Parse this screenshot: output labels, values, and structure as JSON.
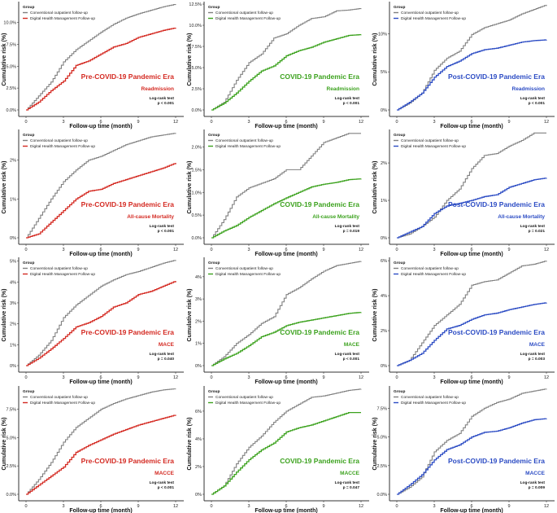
{
  "legend_title": "Group",
  "legend_labels": [
    "Conventional outpatient follow-up",
    "Digital Health Management Follow-up"
  ],
  "xlabel": "Follow-up time (month)",
  "ylabel": "Cumulative risk (%)",
  "logrank_label": "Log-rank test",
  "colors": {
    "conventional": "#808080",
    "pre": "#d42a22",
    "covid": "#3ca21e",
    "post": "#2c4cc4"
  },
  "chart_data": [
    {
      "type": "line",
      "era": "Pre-COVID-19 Pandemic Era",
      "endpoint": "Readmission",
      "era_color": "pre",
      "p": "p < 0.001",
      "xticks": [
        0,
        3,
        6,
        9,
        12
      ],
      "xlim": [
        0,
        12
      ],
      "ylim": [
        0,
        12.2
      ],
      "yticks": [
        0,
        2.5,
        5,
        7.5,
        10
      ],
      "ytick_labels": [
        "0.0%",
        "2.5%",
        "5.0%",
        "7.5%",
        "10.0%"
      ],
      "x": [
        0,
        1,
        2,
        3,
        4,
        5,
        6,
        7,
        8,
        9,
        10,
        11,
        12
      ],
      "series": [
        {
          "name": "Conventional outpatient follow-up",
          "values": [
            0,
            1.6,
            3.2,
            5.5,
            6.9,
            7.9,
            8.9,
            9.8,
            10.5,
            11.0,
            11.4,
            11.8,
            12.1
          ]
        },
        {
          "name": "Digital Health Management Follow-up",
          "values": [
            0,
            0.9,
            2.2,
            3.3,
            5.1,
            5.6,
            6.4,
            7.2,
            7.6,
            8.3,
            8.7,
            9.1,
            9.4
          ]
        }
      ]
    },
    {
      "type": "line",
      "era": "COVID-19 Pandemic Era",
      "endpoint": "Readmission",
      "era_color": "covid",
      "p": "p < 0.001",
      "xticks": [
        0,
        3,
        6,
        9,
        12
      ],
      "xlim": [
        0,
        12
      ],
      "ylim": [
        0,
        12.6
      ],
      "yticks": [
        0,
        2.5,
        5,
        7.5,
        10,
        12.5
      ],
      "ytick_labels": [
        "0.0%",
        "2.5%",
        "5.0%",
        "7.5%",
        "10.0%",
        "12.5%"
      ],
      "x": [
        0,
        1,
        2,
        3,
        4,
        5,
        6,
        7,
        8,
        9,
        10,
        11,
        12
      ],
      "series": [
        {
          "name": "Conventional outpatient follow-up",
          "values": [
            0,
            0.9,
            3.5,
            5.6,
            6.6,
            8.5,
            9.0,
            10.0,
            10.8,
            11.0,
            11.7,
            11.8,
            12.0
          ]
        },
        {
          "name": "Digital Health Management Follow-up",
          "values": [
            0,
            0.8,
            2.0,
            3.4,
            4.6,
            5.2,
            6.4,
            7.0,
            7.4,
            8.0,
            8.4,
            8.8,
            8.9
          ]
        }
      ]
    },
    {
      "type": "line",
      "era": "Post-COVID-19 Pandemic Era",
      "endpoint": "Readmission",
      "era_color": "post",
      "p": "p < 0.001",
      "xticks": [
        0,
        3,
        6,
        9,
        12
      ],
      "xlim": [
        0,
        12
      ],
      "ylim": [
        0,
        14
      ],
      "yticks": [
        0,
        5,
        10
      ],
      "ytick_labels": [
        "0%",
        "5%",
        "10%"
      ],
      "x": [
        0,
        1,
        2,
        3,
        4,
        5,
        6,
        7,
        8,
        9,
        10,
        11,
        12
      ],
      "series": [
        {
          "name": "Conventional outpatient follow-up",
          "values": [
            0,
            0.9,
            2.2,
            5.2,
            6.8,
            7.7,
            9.9,
            10.8,
            11.3,
            11.8,
            12.6,
            13.2,
            13.8
          ]
        },
        {
          "name": "Digital Health Management Follow-up",
          "values": [
            0,
            1.0,
            2.2,
            4.3,
            5.7,
            6.4,
            7.4,
            7.9,
            8.1,
            8.5,
            8.9,
            9.1,
            9.2
          ]
        }
      ]
    },
    {
      "type": "line",
      "era": "Pre-COVID-19 Pandemic Era",
      "endpoint": "All-cause Mortality",
      "era_color": "pre",
      "p": "p < 0.001",
      "xticks": [
        0,
        3,
        6,
        9,
        12
      ],
      "xlim": [
        0,
        12
      ],
      "ylim": [
        0,
        2.75
      ],
      "yticks": [
        0,
        1,
        2
      ],
      "ytick_labels": [
        "0%",
        "1%",
        "2%"
      ],
      "x": [
        0,
        1,
        2,
        3,
        4,
        5,
        6,
        7,
        8,
        9,
        10,
        11,
        12
      ],
      "series": [
        {
          "name": "Conventional outpatient follow-up",
          "values": [
            0,
            0.5,
            1.0,
            1.45,
            1.75,
            2.0,
            2.1,
            2.25,
            2.4,
            2.5,
            2.6,
            2.65,
            2.7
          ]
        },
        {
          "name": "Digital Health Management Follow-up",
          "values": [
            0,
            0.1,
            0.4,
            0.7,
            1.0,
            1.2,
            1.25,
            1.4,
            1.5,
            1.6,
            1.7,
            1.8,
            1.93
          ]
        }
      ]
    },
    {
      "type": "line",
      "era": "COVID-19 Pandemic Era",
      "endpoint": "All-cause Mortality",
      "era_color": "covid",
      "p": "p = 0.019",
      "xticks": [
        0,
        3,
        6,
        9,
        12
      ],
      "xlim": [
        0,
        12
      ],
      "ylim": [
        0,
        2.35
      ],
      "yticks": [
        0,
        0.5,
        1,
        1.5,
        2
      ],
      "ytick_labels": [
        "0.0%",
        "0.5%",
        "1.0%",
        "1.5%",
        "2.0%"
      ],
      "x": [
        0,
        1,
        2,
        3,
        4,
        5,
        6,
        7,
        8,
        9,
        10,
        11,
        12
      ],
      "series": [
        {
          "name": "Conventional outpatient follow-up",
          "values": [
            0,
            0.4,
            0.9,
            1.1,
            1.2,
            1.3,
            1.5,
            1.5,
            1.8,
            2.1,
            2.2,
            2.3,
            2.3
          ]
        },
        {
          "name": "Digital Health Management Follow-up",
          "values": [
            0,
            0.15,
            0.27,
            0.45,
            0.6,
            0.75,
            0.88,
            1.0,
            1.12,
            1.18,
            1.22,
            1.28,
            1.3
          ]
        }
      ]
    },
    {
      "type": "line",
      "era": "Post-COVID-19 Pandemic Era",
      "endpoint": "All-cause Mortality",
      "era_color": "post",
      "p": "p = 0.021",
      "xticks": [
        0,
        3,
        6,
        9,
        12
      ],
      "xlim": [
        0,
        12
      ],
      "ylim": [
        0,
        2.85
      ],
      "yticks": [
        0,
        1,
        2
      ],
      "ytick_labels": [
        "0%",
        "1%",
        "2%"
      ],
      "x": [
        0,
        1,
        2,
        3,
        4,
        5,
        6,
        7,
        8,
        9,
        10,
        11,
        12
      ],
      "series": [
        {
          "name": "Conventional outpatient follow-up",
          "values": [
            0,
            0.1,
            0.3,
            0.55,
            1.0,
            1.3,
            1.85,
            2.2,
            2.25,
            2.45,
            2.6,
            2.8,
            2.8
          ]
        },
        {
          "name": "Digital Health Management Follow-up",
          "values": [
            0,
            0.15,
            0.3,
            0.65,
            0.85,
            0.92,
            1.0,
            1.1,
            1.15,
            1.35,
            1.45,
            1.55,
            1.6
          ]
        }
      ]
    },
    {
      "type": "line",
      "era": "Pre-COVID-19 Pandemic Era",
      "endpoint": "MACE",
      "era_color": "pre",
      "p": "p = 0.040",
      "xticks": [
        0,
        3,
        6,
        9,
        12
      ],
      "xlim": [
        0,
        12
      ],
      "ylim": [
        0,
        5.1
      ],
      "yticks": [
        0,
        1,
        2,
        3,
        4,
        5
      ],
      "ytick_labels": [
        "0%",
        "1%",
        "2%",
        "3%",
        "4%",
        "5%"
      ],
      "x": [
        0,
        1,
        2,
        3,
        4,
        5,
        6,
        7,
        8,
        9,
        10,
        11,
        12
      ],
      "series": [
        {
          "name": "Conventional outpatient follow-up",
          "values": [
            0,
            0.5,
            1.2,
            2.3,
            2.9,
            3.35,
            3.8,
            4.1,
            4.35,
            4.5,
            4.7,
            4.9,
            5.05
          ]
        },
        {
          "name": "Digital Health Management Follow-up",
          "values": [
            0,
            0.35,
            0.8,
            1.3,
            1.85,
            2.05,
            2.35,
            2.8,
            3.0,
            3.4,
            3.55,
            3.8,
            4.05
          ]
        }
      ]
    },
    {
      "type": "line",
      "era": "COVID-19 Pandemic Era",
      "endpoint": "MACE",
      "era_color": "covid",
      "p": "p < 0.001",
      "xticks": [
        0,
        3,
        6,
        9,
        12
      ],
      "xlim": [
        0,
        12
      ],
      "ylim": [
        0,
        4.8
      ],
      "yticks": [
        0,
        1,
        2,
        3,
        4
      ],
      "ytick_labels": [
        "0%",
        "1%",
        "2%",
        "3%",
        "4%"
      ],
      "x": [
        0,
        1,
        2,
        3,
        4,
        5,
        6,
        7,
        8,
        9,
        10,
        11,
        12
      ],
      "series": [
        {
          "name": "Conventional outpatient follow-up",
          "values": [
            0,
            0.4,
            1.0,
            1.4,
            1.9,
            2.2,
            3.2,
            3.5,
            3.9,
            4.25,
            4.5,
            4.6,
            4.7
          ]
        },
        {
          "name": "Digital Health Management Follow-up",
          "values": [
            0,
            0.3,
            0.55,
            0.9,
            1.3,
            1.5,
            1.8,
            1.95,
            2.05,
            2.15,
            2.25,
            2.35,
            2.4
          ]
        }
      ]
    },
    {
      "type": "line",
      "era": "Post-COVID-19 Pandemic Era",
      "endpoint": "MACE",
      "era_color": "post",
      "p": "p = 0.003",
      "xticks": [
        0,
        3,
        6,
        9,
        12
      ],
      "xlim": [
        0,
        12
      ],
      "ylim": [
        0,
        6.1
      ],
      "yticks": [
        0,
        2,
        4,
        6
      ],
      "ytick_labels": [
        "0%",
        "2%",
        "4%",
        "6%"
      ],
      "x": [
        0,
        1,
        2,
        3,
        4,
        5,
        6,
        7,
        8,
        9,
        10,
        11,
        12
      ],
      "series": [
        {
          "name": "Conventional outpatient follow-up",
          "values": [
            0,
            0.3,
            1.3,
            2.3,
            2.9,
            3.5,
            4.6,
            4.8,
            4.9,
            5.3,
            5.7,
            5.8,
            6.0
          ]
        },
        {
          "name": "Digital Health Management Follow-up",
          "values": [
            0,
            0.3,
            0.7,
            1.45,
            2.1,
            2.3,
            2.65,
            2.9,
            3.0,
            3.2,
            3.35,
            3.5,
            3.6
          ]
        }
      ]
    },
    {
      "type": "line",
      "era": "Pre-COVID-19 Pandemic Era",
      "endpoint": "MACCE",
      "era_color": "pre",
      "p": "p < 0.001",
      "xticks": [
        0,
        3,
        6,
        9,
        12
      ],
      "xlim": [
        0,
        12
      ],
      "ylim": [
        0,
        9.4
      ],
      "yticks": [
        0,
        2.5,
        5,
        7.5
      ],
      "ytick_labels": [
        "0.0%",
        "2.5%",
        "5.0%",
        "7.5%"
      ],
      "x": [
        0,
        1,
        2,
        3,
        4,
        5,
        6,
        7,
        8,
        9,
        10,
        11,
        12
      ],
      "series": [
        {
          "name": "Conventional outpatient follow-up",
          "values": [
            0,
            1.3,
            2.8,
            4.6,
            5.9,
            6.7,
            7.5,
            8.0,
            8.4,
            8.7,
            9.0,
            9.2,
            9.3
          ]
        },
        {
          "name": "Digital Health Management Follow-up",
          "values": [
            0,
            0.8,
            1.6,
            2.4,
            3.7,
            4.3,
            4.8,
            5.3,
            5.7,
            6.1,
            6.4,
            6.7,
            7.0
          ]
        }
      ]
    },
    {
      "type": "line",
      "era": "COVID-19 Pandemic Era",
      "endpoint": "MACCE",
      "era_color": "covid",
      "p": "p = 0.047",
      "xticks": [
        0,
        3,
        6,
        9,
        12
      ],
      "xlim": [
        0,
        12
      ],
      "ylim": [
        0,
        7.7
      ],
      "yticks": [
        0,
        2,
        4,
        6
      ],
      "ytick_labels": [
        "0%",
        "2%",
        "4%",
        "6%"
      ],
      "x": [
        0,
        1,
        2,
        3,
        4,
        5,
        6,
        7,
        8,
        9,
        10,
        11,
        12
      ],
      "series": [
        {
          "name": "Conventional outpatient follow-up",
          "values": [
            0,
            0.6,
            2.2,
            3.4,
            4.2,
            5.2,
            6.0,
            6.5,
            7.0,
            7.1,
            7.3,
            7.5,
            7.6
          ]
        },
        {
          "name": "Digital Health Management Follow-up",
          "values": [
            0,
            0.6,
            1.6,
            2.5,
            3.2,
            3.7,
            4.5,
            4.8,
            5.0,
            5.3,
            5.6,
            5.9,
            5.9
          ]
        }
      ]
    },
    {
      "type": "line",
      "era": "Post-COVID-19 Pandemic Era",
      "endpoint": "MACCE",
      "era_color": "post",
      "p": "p = 0.009",
      "xticks": [
        0,
        3,
        6,
        9,
        12
      ],
      "xlim": [
        0,
        12
      ],
      "ylim": [
        0,
        9.3
      ],
      "yticks": [
        0,
        2.5,
        5,
        7.5
      ],
      "ytick_labels": [
        "0.0%",
        "2.5%",
        "5.0%",
        "7.5%"
      ],
      "x": [
        0,
        1,
        2,
        3,
        4,
        5,
        6,
        7,
        8,
        9,
        10,
        11,
        12
      ],
      "series": [
        {
          "name": "Conventional outpatient follow-up",
          "values": [
            0,
            0.6,
            1.5,
            3.7,
            4.7,
            5.3,
            6.8,
            7.5,
            8.0,
            8.3,
            8.8,
            9.0,
            9.2
          ]
        },
        {
          "name": "Digital Health Management Follow-up",
          "values": [
            0,
            0.8,
            1.7,
            3.0,
            3.9,
            4.3,
            5.0,
            5.4,
            5.5,
            5.8,
            6.2,
            6.5,
            6.6
          ]
        }
      ]
    }
  ]
}
